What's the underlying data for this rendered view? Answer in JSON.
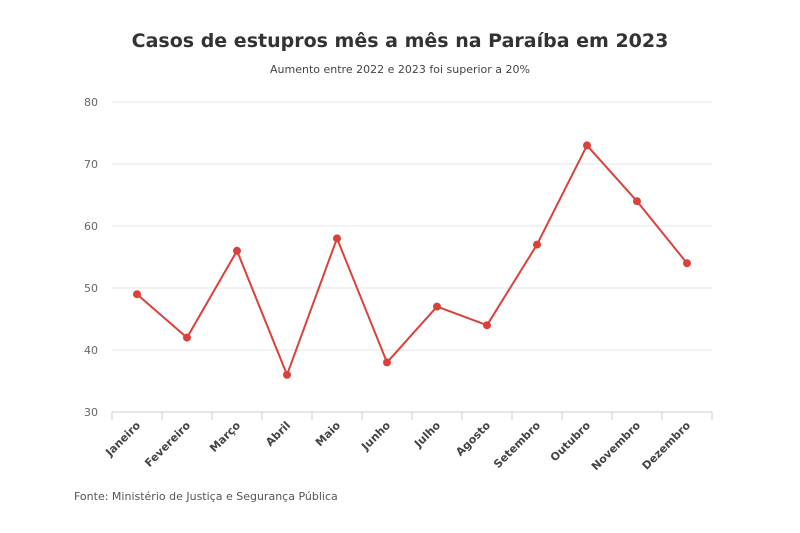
{
  "chart_data": {
    "type": "line",
    "title": "Casos de estupros mês a mês na Paraíba em 2023",
    "subtitle": "Aumento entre 2022 e 2023 foi superior a 20%",
    "xlabel": "",
    "ylabel": "",
    "categories": [
      "Janeiro",
      "Fevereiro",
      "Março",
      "Abril",
      "Maio",
      "Junho",
      "Julho",
      "Agosto",
      "Setembro",
      "Outubro",
      "Novembro",
      "Dezembro"
    ],
    "series": [
      {
        "values": [
          49,
          42,
          56,
          36,
          58,
          38,
          47,
          44,
          57,
          73,
          64,
          54
        ]
      }
    ],
    "ylim": [
      30,
      80
    ],
    "yticks": [
      30,
      40,
      50,
      60,
      70,
      80
    ],
    "grid": true,
    "legend": "none",
    "color": "#d9413a"
  },
  "source": "Fonte: Ministério de Justiça e Segurança Pública"
}
